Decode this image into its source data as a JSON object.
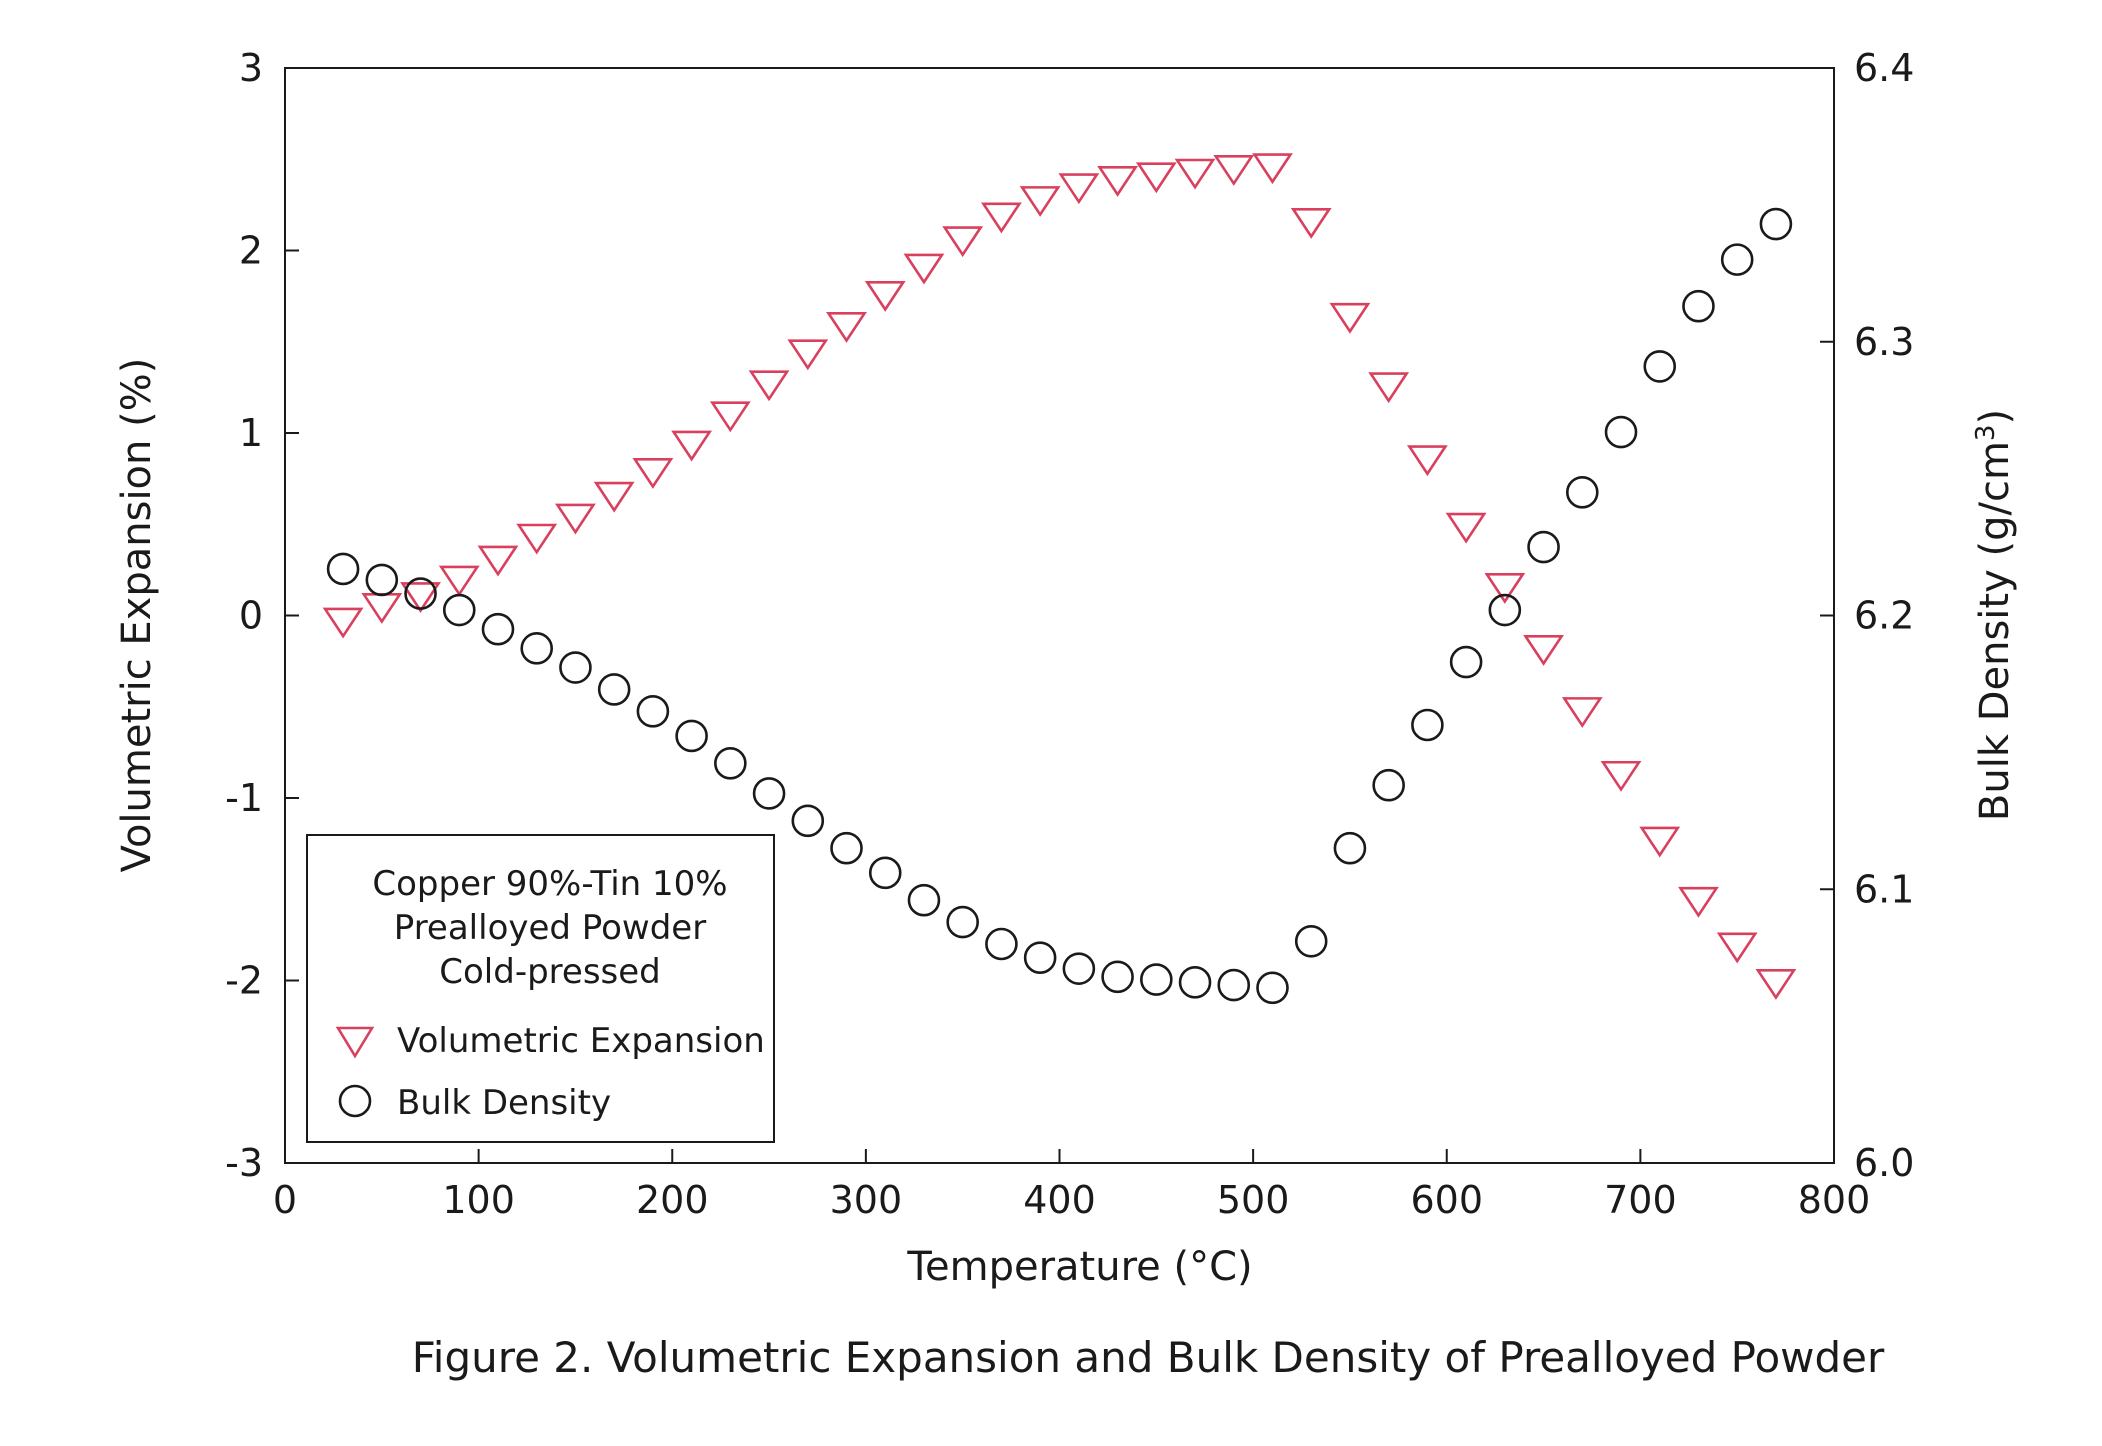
{
  "chart_data": {
    "type": "scatter",
    "title": "",
    "caption": "Figure 2.  Volumetric Expansion and Bulk Density of Prealloyed Powder",
    "xlabel": "Temperature (°C)",
    "ylabel_left": "Volumetric Expansion (%)",
    "ylabel_right_main": "Bulk Density (g/cm",
    "ylabel_right_sup": "3",
    "ylabel_right_close": ")",
    "xlim": [
      0,
      800
    ],
    "ylim_left": [
      -3,
      3
    ],
    "ylim_right": [
      6.0,
      6.4
    ],
    "x_ticks": [
      "0",
      "100",
      "200",
      "300",
      "400",
      "500",
      "600",
      "700",
      "800"
    ],
    "y_left_ticks": [
      "-3",
      "-2",
      "-1",
      "0",
      "1",
      "2",
      "3"
    ],
    "y_right_ticks": [
      "6.0",
      "6.1",
      "6.2",
      "6.3",
      "6.4"
    ],
    "grid": false,
    "legend": {
      "placement": "bottom-left",
      "title_lines": [
        "Copper 90%-Tin 10%",
        "Prealloyed Powder",
        "Cold-pressed"
      ]
    },
    "series": [
      {
        "name": "Volumetric Expansion",
        "marker": "triangle-down",
        "axis": "left",
        "color": "#d9405e",
        "x": [
          30,
          50,
          70,
          90,
          110,
          130,
          150,
          170,
          190,
          210,
          230,
          250,
          270,
          290,
          310,
          330,
          350,
          370,
          390,
          410,
          430,
          450,
          470,
          490,
          510,
          530,
          550,
          570,
          590,
          610,
          630,
          650,
          670,
          690,
          710,
          730,
          750,
          770
        ],
        "y": [
          -0.02,
          0.06,
          0.12,
          0.21,
          0.32,
          0.44,
          0.55,
          0.67,
          0.8,
          0.95,
          1.11,
          1.28,
          1.45,
          1.6,
          1.77,
          1.92,
          2.07,
          2.2,
          2.29,
          2.36,
          2.4,
          2.42,
          2.44,
          2.46,
          2.47,
          2.17,
          1.65,
          1.27,
          0.87,
          0.5,
          0.17,
          -0.17,
          -0.51,
          -0.86,
          -1.22,
          -1.55,
          -1.8,
          -2.0
        ]
      },
      {
        "name": "Bulk Density",
        "marker": "circle",
        "axis": "right",
        "color": "#1a1a1a",
        "x": [
          30,
          50,
          70,
          90,
          110,
          130,
          150,
          170,
          190,
          210,
          230,
          250,
          270,
          290,
          310,
          330,
          350,
          370,
          390,
          410,
          430,
          450,
          470,
          490,
          510,
          530,
          550,
          570,
          590,
          610,
          630,
          650,
          670,
          690,
          710,
          730,
          750,
          770
        ],
        "y": [
          6.217,
          6.213,
          6.208,
          6.202,
          6.195,
          6.188,
          6.181,
          6.173,
          6.165,
          6.156,
          6.146,
          6.135,
          6.125,
          6.115,
          6.106,
          6.096,
          6.088,
          6.08,
          6.075,
          6.071,
          6.068,
          6.067,
          6.066,
          6.065,
          6.064,
          6.081,
          6.115,
          6.138,
          6.16,
          6.183,
          6.202,
          6.225,
          6.245,
          6.267,
          6.291,
          6.313,
          6.33,
          6.343
        ]
      }
    ]
  }
}
